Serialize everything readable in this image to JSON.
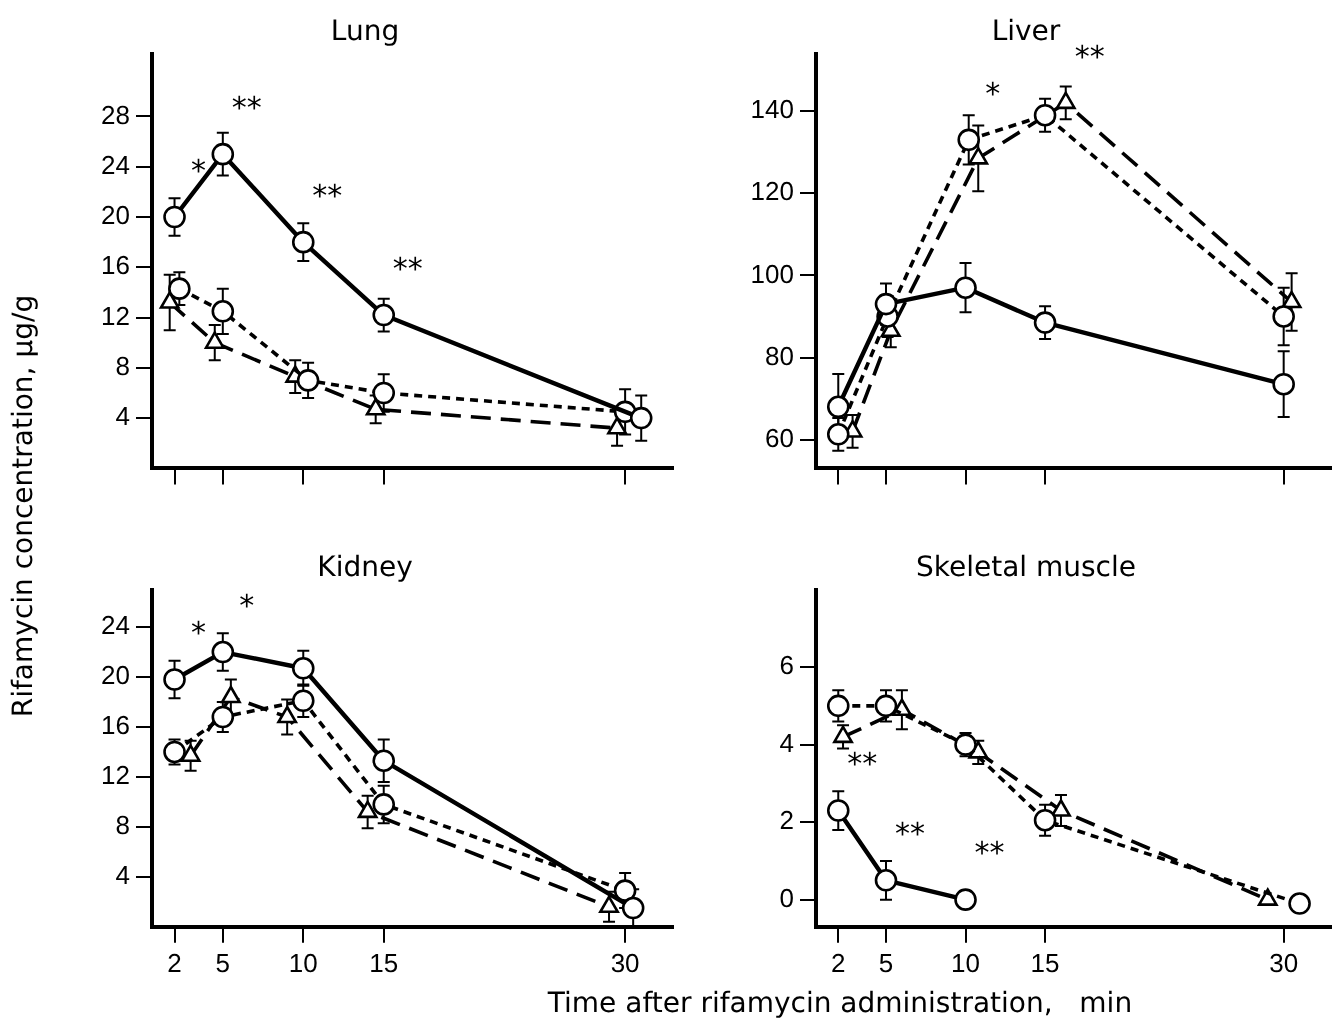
{
  "chart_data": [
    {
      "type": "line",
      "title": "Lung",
      "ylabel": "Rifamycin concentration,  μg/g",
      "xlim": [
        0.6,
        33
      ],
      "xticks": [
        2,
        5,
        10,
        15,
        30
      ],
      "ylim": [
        0,
        33
      ],
      "yticks": [
        4,
        8,
        12,
        16,
        20,
        24,
        28
      ],
      "grid": false,
      "legend": false,
      "tick_labels": "y",
      "series": [
        {
          "color": "#000000",
          "marker": "circle",
          "line_style": "solid",
          "x": [
            2,
            5,
            10,
            15,
            31
          ],
          "values": [
            20,
            25,
            18,
            12.2,
            4
          ],
          "errors": [
            1.5,
            1.7,
            1.5,
            1.3,
            1.8
          ]
        },
        {
          "color": "#000000",
          "marker": "circle",
          "line_style": "dotted",
          "x": [
            2.3,
            5,
            10.3,
            15,
            30
          ],
          "values": [
            14.3,
            12.5,
            7,
            6,
            4.5
          ],
          "errors": [
            1.3,
            1.8,
            1.4,
            1.5,
            1.8
          ]
        },
        {
          "color": "#000000",
          "marker": "triangle",
          "line_style": "dashed",
          "x": [
            1.7,
            4.5,
            9.5,
            14.5,
            29.5
          ],
          "values": [
            13.2,
            10,
            7.3,
            4.7,
            3.2
          ],
          "errors": [
            2.2,
            1.4,
            1.3,
            1.1,
            1.4
          ]
        }
      ],
      "annotations": [
        {
          "text": "*",
          "x": 2,
          "y": 20
        },
        {
          "text": "**",
          "x": 5,
          "y": 25
        },
        {
          "text": "**",
          "x": 10,
          "y": 18
        },
        {
          "text": "**",
          "x": 15,
          "y": 12.2
        }
      ]
    },
    {
      "type": "line",
      "title": "Liver",
      "xlim": [
        0.6,
        33
      ],
      "xticks": [
        2,
        5,
        10,
        15,
        30
      ],
      "ylim": [
        53,
        154
      ],
      "yticks": [
        60,
        80,
        100,
        120,
        140
      ],
      "grid": false,
      "legend": false,
      "tick_labels": "y",
      "series": [
        {
          "color": "#000000",
          "marker": "circle",
          "line_style": "solid",
          "x": [
            2,
            5,
            10,
            15,
            30
          ],
          "values": [
            68,
            93,
            97,
            88.5,
            73.5
          ],
          "errors": [
            8,
            5,
            6,
            4,
            8
          ]
        },
        {
          "color": "#000000",
          "marker": "circle",
          "line_style": "dotted",
          "x": [
            2,
            5.1,
            10.2,
            15,
            30
          ],
          "values": [
            61.3,
            90,
            133,
            139,
            90
          ],
          "errors": [
            4,
            5,
            6,
            4,
            7
          ]
        },
        {
          "color": "#000000",
          "marker": "triangle",
          "line_style": "dashed",
          "x": [
            2.9,
            5.3,
            10.8,
            16.3,
            30.5
          ],
          "values": [
            62,
            86.5,
            128.5,
            142,
            93.5
          ],
          "errors": [
            4,
            4,
            8,
            4,
            7
          ]
        }
      ],
      "annotations": [
        {
          "text": "*",
          "x": 10.2,
          "y": 133
        },
        {
          "text": "**",
          "x": 16.3,
          "y": 142
        }
      ]
    },
    {
      "type": "line",
      "title": "Kidney",
      "xlabel": "Time after rifamycin administration,   min",
      "xlim": [
        0.6,
        33
      ],
      "xticks": [
        2,
        5,
        10,
        15,
        30
      ],
      "ylim": [
        0,
        27
      ],
      "yticks": [
        4,
        8,
        12,
        16,
        20,
        24
      ],
      "grid": false,
      "legend": false,
      "series": [
        {
          "color": "#000000",
          "marker": "circle",
          "line_style": "solid",
          "x": [
            2,
            5,
            10,
            15,
            30.5
          ],
          "values": [
            19.8,
            22,
            20.7,
            13.3,
            1.5
          ],
          "errors": [
            1.5,
            1.5,
            1.4,
            1.7,
            1.5
          ]
        },
        {
          "color": "#000000",
          "marker": "circle",
          "line_style": "dotted",
          "x": [
            2,
            5,
            10,
            15,
            30
          ],
          "values": [
            14,
            16.8,
            18.1,
            9.8,
            2.9
          ],
          "errors": [
            1,
            1.2,
            1.3,
            1.5,
            1.4
          ]
        },
        {
          "color": "#000000",
          "marker": "triangle",
          "line_style": "dashed",
          "x": [
            3,
            5.5,
            9,
            14,
            29
          ],
          "values": [
            13.7,
            18.4,
            16.8,
            9.2,
            1.6
          ],
          "errors": [
            1.2,
            1.4,
            1.4,
            1.3,
            1.2
          ]
        }
      ],
      "annotations": [
        {
          "text": "*",
          "x": 2,
          "y": 19.8
        },
        {
          "text": "*",
          "x": 5,
          "y": 22
        }
      ]
    },
    {
      "type": "line",
      "title": "Skeletal muscle",
      "xlim": [
        0.6,
        33
      ],
      "xticks": [
        2,
        5,
        10,
        15,
        30
      ],
      "ylim": [
        -0.7,
        8
      ],
      "yticks": [
        0,
        2,
        4,
        6
      ],
      "grid": false,
      "legend": false,
      "series": [
        {
          "color": "#000000",
          "marker": "circle",
          "line_style": "solid",
          "x": [
            2,
            5,
            10
          ],
          "values": [
            2.3,
            0.5,
            0
          ],
          "errors": [
            0.5,
            0.5,
            null
          ]
        },
        {
          "color": "#000000",
          "marker": "circle",
          "line_style": "dotted",
          "x": [
            2,
            5,
            10,
            15,
            31
          ],
          "values": [
            5,
            5,
            4,
            2.05,
            -0.1
          ],
          "errors": [
            0.4,
            0.4,
            0.3,
            0.4,
            null
          ]
        },
        {
          "color": "#000000",
          "marker": "triangle",
          "line_style": "dashed",
          "x": [
            2.3,
            6,
            10.8,
            16,
            29
          ],
          "values": [
            4.2,
            4.9,
            3.8,
            2.3,
            0
          ],
          "errors": [
            0.3,
            0.5,
            0.3,
            0.4,
            null
          ]
        }
      ],
      "annotations": [
        {
          "text": "**",
          "x": 2,
          "y": 2.3
        },
        {
          "text": "**",
          "x": 5,
          "y": 0.5
        },
        {
          "text": "**",
          "x": 10,
          "y": 0
        }
      ]
    }
  ]
}
